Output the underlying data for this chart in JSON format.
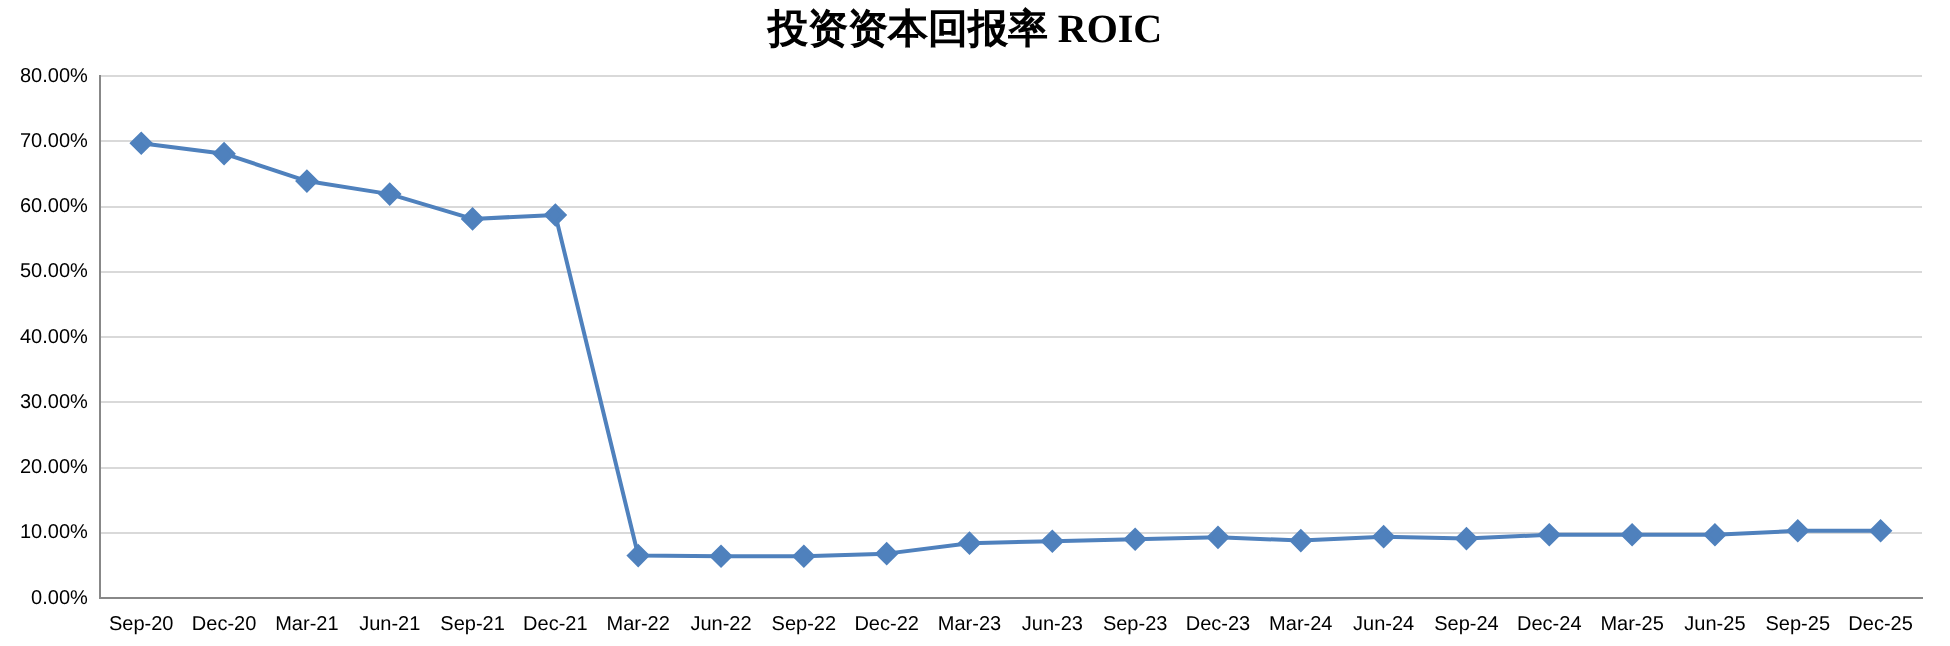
{
  "chart_data": {
    "type": "line",
    "title": "投资资本回报率 ROIC",
    "categories": [
      "Sep-20",
      "Dec-20",
      "Mar-21",
      "Jun-21",
      "Sep-21",
      "Dec-21",
      "Mar-22",
      "Jun-22",
      "Sep-22",
      "Dec-22",
      "Mar-23",
      "Jun-23",
      "Sep-23",
      "Dec-23",
      "Mar-24",
      "Jun-24",
      "Sep-24",
      "Dec-24",
      "Mar-25",
      "Jun-25",
      "Sep-25",
      "Dec-25"
    ],
    "series": [
      {
        "color": "#4f81bd",
        "values": [
          69.7,
          68.1,
          63.9,
          61.9,
          58.1,
          58.7,
          6.5,
          6.4,
          6.4,
          6.8,
          8.4,
          8.7,
          9.0,
          9.3,
          8.8,
          9.4,
          9.1,
          9.7,
          9.7,
          9.7,
          10.3,
          10.3
        ]
      }
    ],
    "ylim": [
      0,
      80
    ],
    "yticks": [
      {
        "value": 0,
        "label": "0.00%"
      },
      {
        "value": 10,
        "label": "10.00%"
      },
      {
        "value": 20,
        "label": "20.00%"
      },
      {
        "value": 30,
        "label": "30.00%"
      },
      {
        "value": 40,
        "label": "40.00%"
      },
      {
        "value": 50,
        "label": "50.00%"
      },
      {
        "value": 60,
        "label": "60.00%"
      },
      {
        "value": 70,
        "label": "70.00%"
      },
      {
        "value": 80,
        "label": "80.00%"
      }
    ],
    "grid": "y",
    "legend": false,
    "marker": "diamond",
    "line_style": "solid"
  }
}
